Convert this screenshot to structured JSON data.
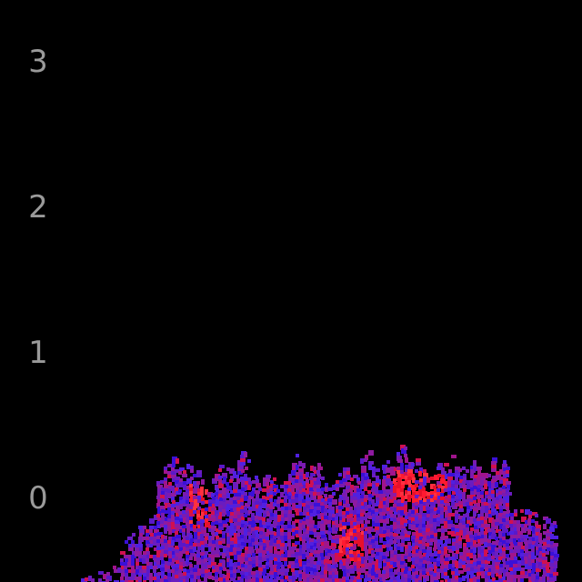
{
  "axis": {
    "labels": [
      "3",
      "2",
      "1",
      "0"
    ]
  },
  "colors": {
    "background": "#000000",
    "label": "#9a9a9a",
    "palette": [
      "#3a10d8",
      "#5a18c8",
      "#7a1ab0",
      "#8e1aa0",
      "#a0148c",
      "#5020e0",
      "#6a1cc0",
      "#d01050"
    ],
    "hot": [
      "#ff1a30",
      "#e8102a",
      "#ff3040"
    ]
  }
}
